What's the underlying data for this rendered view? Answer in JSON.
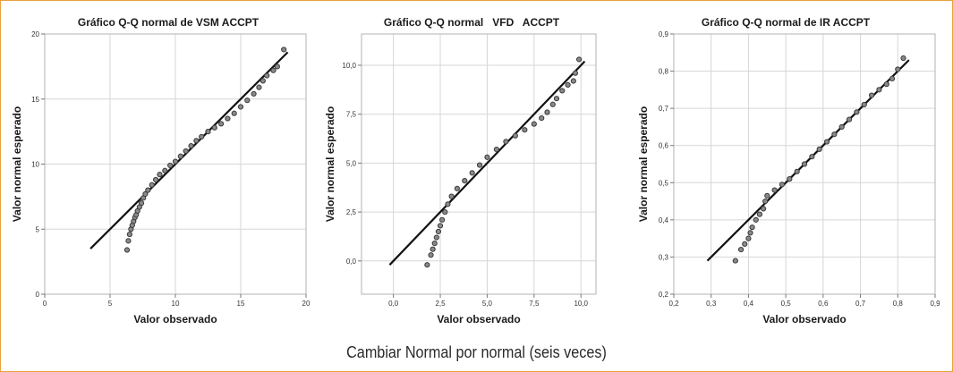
{
  "caption": "Cambiar Normal por normal (seis veces)",
  "chart_data": [
    {
      "type": "scatter",
      "title": "Gráfico Q-Q normal de VSM ACCPT",
      "xlabel": "Valor observado",
      "ylabel": "Valor normal esperado",
      "xlim": [
        0,
        20
      ],
      "ylim": [
        0,
        20
      ],
      "xticks": [
        0,
        5,
        10,
        15,
        20
      ],
      "yticks": [
        0,
        5,
        10,
        15,
        20
      ],
      "xtick_labels": [
        "0",
        "5",
        "10",
        "15",
        "20"
      ],
      "ytick_labels": [
        "0",
        "5",
        "10",
        "15",
        "20"
      ],
      "reference_line": [
        [
          3.5,
          3.5
        ],
        [
          18.6,
          18.6
        ]
      ],
      "points": [
        [
          6.3,
          3.4
        ],
        [
          6.4,
          4.1
        ],
        [
          6.5,
          4.6
        ],
        [
          6.6,
          5.0
        ],
        [
          6.7,
          5.3
        ],
        [
          6.8,
          5.6
        ],
        [
          6.9,
          5.9
        ],
        [
          7.0,
          6.1
        ],
        [
          7.1,
          6.4
        ],
        [
          7.25,
          6.7
        ],
        [
          7.4,
          7.0
        ],
        [
          7.55,
          7.4
        ],
        [
          7.7,
          7.7
        ],
        [
          7.9,
          8.0
        ],
        [
          8.2,
          8.4
        ],
        [
          8.5,
          8.8
        ],
        [
          8.8,
          9.2
        ],
        [
          9.2,
          9.5
        ],
        [
          9.6,
          9.9
        ],
        [
          10.0,
          10.2
        ],
        [
          10.4,
          10.6
        ],
        [
          10.8,
          11.0
        ],
        [
          11.2,
          11.4
        ],
        [
          11.6,
          11.8
        ],
        [
          12.0,
          12.1
        ],
        [
          12.5,
          12.5
        ],
        [
          13.0,
          12.8
        ],
        [
          13.5,
          13.1
        ],
        [
          14.0,
          13.5
        ],
        [
          14.5,
          13.9
        ],
        [
          15.0,
          14.4
        ],
        [
          15.5,
          14.9
        ],
        [
          16.0,
          15.4
        ],
        [
          16.4,
          15.9
        ],
        [
          16.7,
          16.4
        ],
        [
          17.0,
          16.8
        ],
        [
          17.5,
          17.2
        ],
        [
          17.8,
          17.5
        ],
        [
          18.3,
          18.8
        ]
      ]
    },
    {
      "type": "scatter",
      "title": "Gráfico Q-Q normal   VFD   ACCPT",
      "xlabel": "Valor observado",
      "ylabel": "Valor normal esperado",
      "xlim": [
        -1.7,
        10.8
      ],
      "ylim": [
        -1.7,
        11.6
      ],
      "xticks": [
        0,
        2.5,
        5,
        7.5,
        10
      ],
      "yticks": [
        0,
        2.5,
        5,
        7.5,
        10
      ],
      "xtick_labels": [
        "0,0",
        "2,5",
        "5,0",
        "7,5",
        "10,0"
      ],
      "ytick_labels": [
        "0,0",
        "2,5",
        "5,0",
        "7,5",
        "10,0"
      ],
      "reference_line": [
        [
          -0.2,
          -0.2
        ],
        [
          10.2,
          10.2
        ]
      ],
      "points": [
        [
          1.8,
          -0.2
        ],
        [
          2.0,
          0.3
        ],
        [
          2.1,
          0.6
        ],
        [
          2.2,
          0.9
        ],
        [
          2.3,
          1.2
        ],
        [
          2.4,
          1.5
        ],
        [
          2.5,
          1.8
        ],
        [
          2.6,
          2.1
        ],
        [
          2.75,
          2.5
        ],
        [
          2.9,
          2.9
        ],
        [
          3.1,
          3.3
        ],
        [
          3.4,
          3.7
        ],
        [
          3.8,
          4.1
        ],
        [
          4.2,
          4.5
        ],
        [
          4.6,
          4.9
        ],
        [
          5.0,
          5.3
        ],
        [
          5.5,
          5.7
        ],
        [
          6.0,
          6.1
        ],
        [
          6.5,
          6.4
        ],
        [
          7.0,
          6.7
        ],
        [
          7.5,
          7.0
        ],
        [
          7.9,
          7.3
        ],
        [
          8.2,
          7.6
        ],
        [
          8.5,
          8.0
        ],
        [
          8.7,
          8.3
        ],
        [
          9.0,
          8.7
        ],
        [
          9.3,
          9.0
        ],
        [
          9.6,
          9.2
        ],
        [
          9.7,
          9.6
        ],
        [
          9.9,
          10.3
        ]
      ]
    },
    {
      "type": "scatter",
      "title": "Gráfico Q-Q normal de IR ACCPT",
      "xlabel": "Valor observado",
      "ylabel": "Valor normal esperado",
      "xlim": [
        0.2,
        0.9
      ],
      "ylim": [
        0.2,
        0.9
      ],
      "xticks": [
        0.2,
        0.3,
        0.4,
        0.5,
        0.6,
        0.7,
        0.8,
        0.9
      ],
      "yticks": [
        0.2,
        0.3,
        0.4,
        0.5,
        0.6,
        0.7,
        0.8,
        0.9
      ],
      "xtick_labels": [
        "0,2",
        "0,3",
        "0,4",
        "0,5",
        "0,6",
        "0,7",
        "0,8",
        "0,9"
      ],
      "ytick_labels": [
        "0,2",
        "0,3",
        "0,4",
        "0,5",
        "0,6",
        "0,7",
        "0,8",
        "0,9"
      ],
      "reference_line": [
        [
          0.29,
          0.29
        ],
        [
          0.83,
          0.83
        ]
      ],
      "points": [
        [
          0.365,
          0.29
        ],
        [
          0.38,
          0.32
        ],
        [
          0.39,
          0.335
        ],
        [
          0.4,
          0.35
        ],
        [
          0.405,
          0.365
        ],
        [
          0.41,
          0.38
        ],
        [
          0.42,
          0.4
        ],
        [
          0.43,
          0.415
        ],
        [
          0.44,
          0.43
        ],
        [
          0.445,
          0.45
        ],
        [
          0.45,
          0.465
        ],
        [
          0.47,
          0.48
        ],
        [
          0.49,
          0.495
        ],
        [
          0.51,
          0.51
        ],
        [
          0.53,
          0.53
        ],
        [
          0.55,
          0.55
        ],
        [
          0.57,
          0.57
        ],
        [
          0.59,
          0.59
        ],
        [
          0.61,
          0.61
        ],
        [
          0.63,
          0.63
        ],
        [
          0.65,
          0.65
        ],
        [
          0.67,
          0.67
        ],
        [
          0.69,
          0.69
        ],
        [
          0.71,
          0.71
        ],
        [
          0.73,
          0.735
        ],
        [
          0.75,
          0.75
        ],
        [
          0.77,
          0.765
        ],
        [
          0.785,
          0.78
        ],
        [
          0.8,
          0.805
        ],
        [
          0.815,
          0.835
        ]
      ]
    }
  ]
}
